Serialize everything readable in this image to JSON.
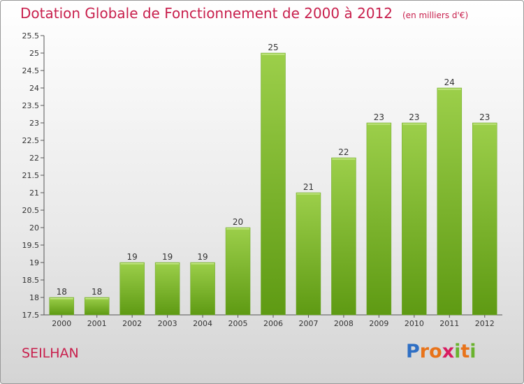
{
  "title": "Dotation Globale de Fonctionnement de 2000 à 2012",
  "subtitle": "(en milliers d'€)",
  "commune": "SEILHAN",
  "logo": {
    "text": "Proxiti",
    "letters": [
      "P",
      "r",
      "o",
      "x",
      "i",
      "t",
      "i"
    ],
    "colors": [
      "#2f6fc4",
      "#e8731a",
      "#e8731a",
      "#d81b60",
      "#6ab32e",
      "#e8731a",
      "#6ab32e"
    ]
  },
  "colors": {
    "title": "#c8204d",
    "bar_top": "#9ccf4a",
    "bar_bottom": "#5e9a13"
  },
  "chart_data": {
    "type": "bar",
    "title": "Dotation Globale de Fonctionnement de 2000 à 2012",
    "subtitle": "(en milliers d'€)",
    "xlabel": "",
    "ylabel": "",
    "categories": [
      "2000",
      "2001",
      "2002",
      "2003",
      "2004",
      "2005",
      "2006",
      "2007",
      "2008",
      "2009",
      "2010",
      "2011",
      "2012"
    ],
    "values": [
      18,
      18,
      19,
      19,
      19,
      20,
      25,
      21,
      22,
      23,
      23,
      24,
      23
    ],
    "ylim": [
      17.5,
      25.5
    ],
    "yticks": [
      "17.5",
      "18",
      "18.5",
      "19",
      "19.5",
      "20",
      "20.5",
      "21",
      "21.5",
      "22",
      "22.5",
      "23",
      "23.5",
      "24",
      "24.5",
      "25",
      "25.5"
    ],
    "grid": false,
    "legend": "none"
  }
}
